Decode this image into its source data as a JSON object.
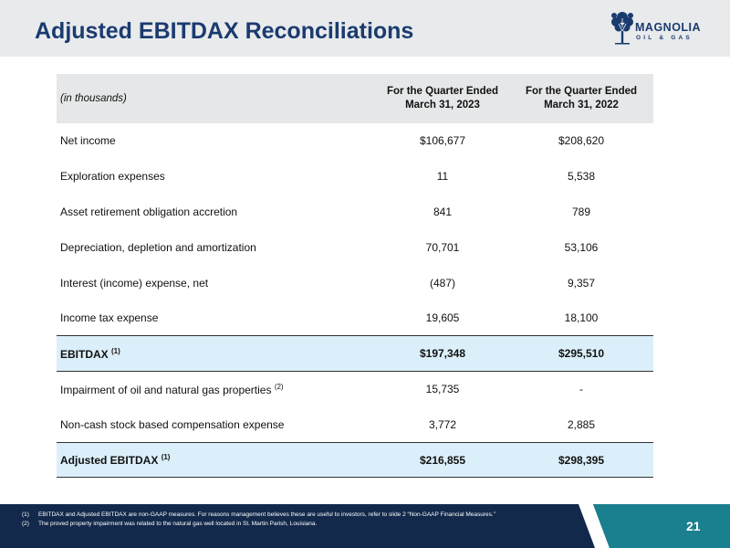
{
  "header": {
    "title": "Adjusted EBITDAX Reconciliations",
    "logo_word": "MAGNOLIA",
    "logo_sub": "OIL & GAS"
  },
  "table": {
    "label_header": "(in thousands)",
    "col1_header_line1": "For the Quarter Ended",
    "col1_header_line2": "March 31, 2023",
    "col2_header_line1": "For the Quarter Ended",
    "col2_header_line2": "March 31, 2022",
    "rows": [
      {
        "label": "Net income",
        "sup": "",
        "v2023": "$106,677",
        "v2022": "$208,620"
      },
      {
        "label": "Exploration expenses",
        "sup": "",
        "v2023": "11",
        "v2022": "5,538"
      },
      {
        "label": "Asset retirement obligation accretion",
        "sup": "",
        "v2023": "841",
        "v2022": "789"
      },
      {
        "label": "Depreciation, depletion and amortization",
        "sup": "",
        "v2023": "70,701",
        "v2022": "53,106"
      },
      {
        "label": "Interest (income) expense, net",
        "sup": "",
        "v2023": "(487)",
        "v2022": "9,357"
      },
      {
        "label": "Income tax expense",
        "sup": "",
        "v2023": "19,605",
        "v2022": "18,100"
      },
      {
        "label": "EBITDAX",
        "sup": "(1)",
        "v2023": "$197,348",
        "v2022": "$295,510"
      },
      {
        "label": "Impairment of oil and natural gas properties",
        "sup": "(2)",
        "v2023": "15,735",
        "v2022": "-"
      },
      {
        "label": "Non-cash stock based compensation expense",
        "sup": "",
        "v2023": "3,772",
        "v2022": "2,885"
      },
      {
        "label": "Adjusted EBITDAX",
        "sup": "(1)",
        "v2023": "$216,855",
        "v2022": "$298,395"
      }
    ]
  },
  "footer": {
    "note1_num": "(1)",
    "note1_text": "EBITDAX and Adjusted EBITDAX are non-GAAP measures. For reasons management believes these are useful to investors, refer to slide 2 “Non-GAAP Financial Measures.”",
    "note2_num": "(2)",
    "note2_text": "The proved property impairment was related to the natural gas well located in St. Martin Parish, Louisiana.",
    "page_number": "21"
  },
  "colors": {
    "navy": "#13294b",
    "title_blue": "#1b3b6f",
    "teal": "#1a7f8e",
    "highlight_row": "#dbeffa",
    "header_row": "#e6e7e8"
  }
}
